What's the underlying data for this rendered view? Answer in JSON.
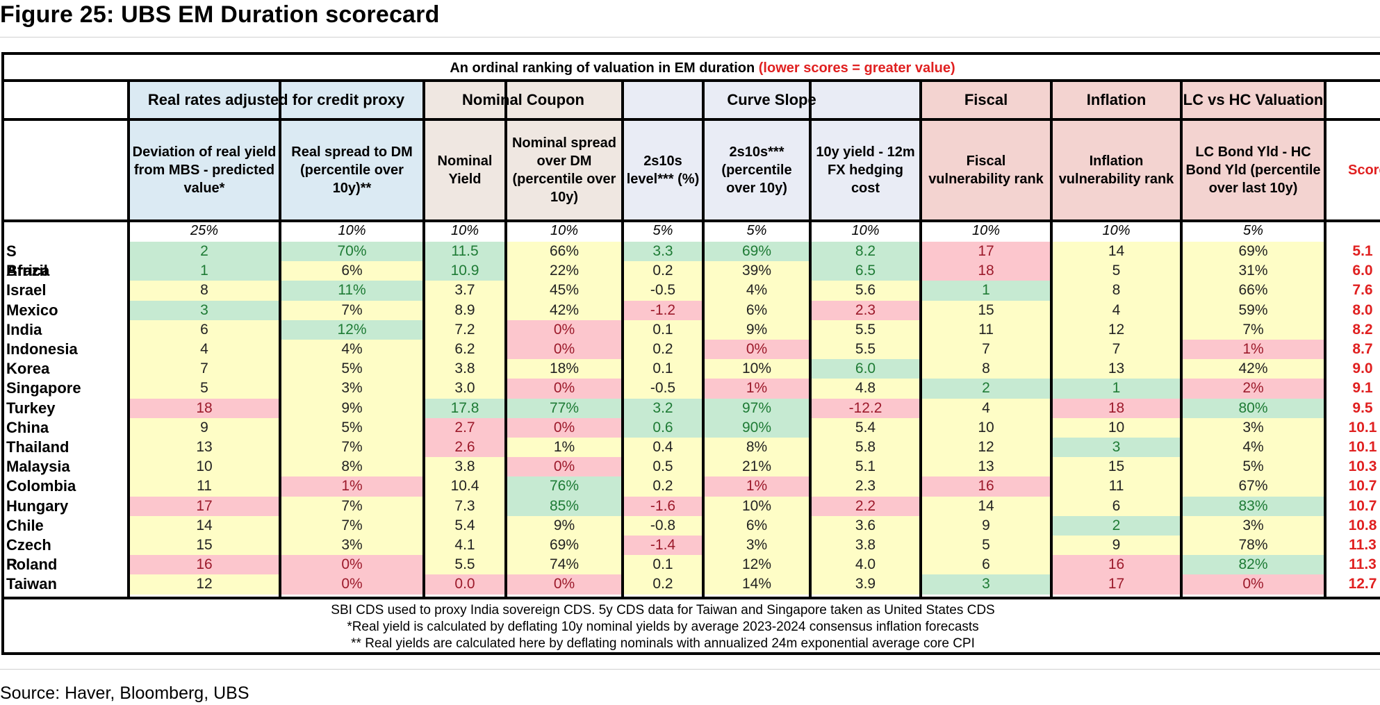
{
  "figure_title": "Figure 25: UBS EM Duration scorecard",
  "source": "Source: Haver, Bloomberg, UBS",
  "banner": {
    "text": "An ordinal ranking of valuation in EM duration ",
    "highlight": "(lower scores = greater value)"
  },
  "colors": {
    "good": "#c6ead2",
    "bad": "#fcc6cd",
    "neutral": "#fefdc6",
    "group_blue": "#dbeaf3",
    "group_beige": "#efe7e1",
    "group_lavender": "#e9ecf5",
    "group_pink": "#f3d3d0",
    "score_red": "#e02020"
  },
  "groups": [
    {
      "label": "Real rates adjusted for credit proxy"
    },
    {
      "label": "Nominal Coupon"
    },
    {
      "label": "Curve Slope"
    },
    {
      "label": "Fiscal"
    },
    {
      "label": "Inflation"
    },
    {
      "label": "LC vs HC Valuation"
    }
  ],
  "columns": [
    {
      "label": "Deviation of real yield from MBS - predicted value*",
      "weight": "25%"
    },
    {
      "label": "Real spread to DM (percentile over 10y)**",
      "weight": "10%"
    },
    {
      "label": "Nominal Yield",
      "weight": "10%"
    },
    {
      "label": "Nominal spread over DM (percentile over 10y)",
      "weight": "10%"
    },
    {
      "label": "2s10s level*** (%)",
      "weight": "5%"
    },
    {
      "label": "2s10s*** (percentile over 10y)",
      "weight": "5%"
    },
    {
      "label": "10y yield - 12m FX hedging cost",
      "weight": "10%"
    },
    {
      "label": "Fiscal vulnerability rank",
      "weight": "10%"
    },
    {
      "label": "Inflation vulnerability rank",
      "weight": "10%"
    },
    {
      "label": "LC Bond Yld - HC Bond Yld (percentile over last 10y)",
      "weight": "5%"
    }
  ],
  "score_label": "Score",
  "rows": [
    {
      "country": "S Africa",
      "score": "5.1",
      "values": [
        "2",
        "70%",
        "11.5",
        "66%",
        "3.3",
        "69%",
        "8.2",
        "17",
        "14",
        "69%"
      ],
      "shade": [
        "g",
        "g",
        "g",
        "y",
        "g",
        "g",
        "g",
        "r",
        "y",
        "y"
      ]
    },
    {
      "country": "Brazil",
      "score": "6.0",
      "values": [
        "1",
        "6%",
        "10.9",
        "22%",
        "0.2",
        "39%",
        "6.5",
        "18",
        "5",
        "31%"
      ],
      "shade": [
        "g",
        "y",
        "g",
        "y",
        "y",
        "y",
        "g",
        "r",
        "y",
        "y"
      ]
    },
    {
      "country": "Israel",
      "score": "7.6",
      "values": [
        "8",
        "11%",
        "3.7",
        "45%",
        "-0.5",
        "4%",
        "5.6",
        "1",
        "8",
        "66%"
      ],
      "shade": [
        "y",
        "g",
        "y",
        "y",
        "y",
        "y",
        "y",
        "g",
        "y",
        "y"
      ]
    },
    {
      "country": "Mexico",
      "score": "8.0",
      "values": [
        "3",
        "7%",
        "8.9",
        "42%",
        "-1.2",
        "6%",
        "2.3",
        "15",
        "4",
        "59%"
      ],
      "shade": [
        "g",
        "y",
        "y",
        "y",
        "r",
        "y",
        "r",
        "y",
        "y",
        "y"
      ]
    },
    {
      "country": "India",
      "score": "8.2",
      "values": [
        "6",
        "12%",
        "7.2",
        "0%",
        "0.1",
        "9%",
        "5.5",
        "11",
        "12",
        "7%"
      ],
      "shade": [
        "y",
        "g",
        "y",
        "r",
        "y",
        "y",
        "y",
        "y",
        "y",
        "y"
      ]
    },
    {
      "country": "Indonesia",
      "score": "8.7",
      "values": [
        "4",
        "4%",
        "6.2",
        "0%",
        "0.2",
        "0%",
        "5.5",
        "7",
        "7",
        "1%"
      ],
      "shade": [
        "y",
        "y",
        "y",
        "r",
        "y",
        "r",
        "y",
        "y",
        "y",
        "r"
      ]
    },
    {
      "country": "Korea",
      "score": "9.0",
      "values": [
        "7",
        "5%",
        "3.8",
        "18%",
        "0.1",
        "10%",
        "6.0",
        "8",
        "13",
        "42%"
      ],
      "shade": [
        "y",
        "y",
        "y",
        "y",
        "y",
        "y",
        "g",
        "y",
        "y",
        "y"
      ]
    },
    {
      "country": "Singapore",
      "score": "9.1",
      "values": [
        "5",
        "3%",
        "3.0",
        "0%",
        "-0.5",
        "1%",
        "4.8",
        "2",
        "1",
        "2%"
      ],
      "shade": [
        "y",
        "y",
        "y",
        "r",
        "y",
        "r",
        "y",
        "g",
        "g",
        "r"
      ]
    },
    {
      "country": "Turkey",
      "score": "9.5",
      "values": [
        "18",
        "9%",
        "17.8",
        "77%",
        "3.2",
        "97%",
        "-12.2",
        "4",
        "18",
        "80%"
      ],
      "shade": [
        "r",
        "y",
        "g",
        "g",
        "g",
        "g",
        "r",
        "y",
        "r",
        "g"
      ]
    },
    {
      "country": "China",
      "score": "10.1",
      "values": [
        "9",
        "5%",
        "2.7",
        "0%",
        "0.6",
        "90%",
        "5.4",
        "10",
        "10",
        "3%"
      ],
      "shade": [
        "y",
        "y",
        "r",
        "r",
        "g",
        "g",
        "y",
        "y",
        "y",
        "y"
      ]
    },
    {
      "country": "Thailand",
      "score": "10.1",
      "values": [
        "13",
        "7%",
        "2.6",
        "1%",
        "0.4",
        "8%",
        "5.8",
        "12",
        "3",
        "4%"
      ],
      "shade": [
        "y",
        "y",
        "r",
        "y",
        "y",
        "y",
        "y",
        "y",
        "g",
        "y"
      ]
    },
    {
      "country": "Malaysia",
      "score": "10.3",
      "values": [
        "10",
        "8%",
        "3.8",
        "0%",
        "0.5",
        "21%",
        "5.1",
        "13",
        "15",
        "5%"
      ],
      "shade": [
        "y",
        "y",
        "y",
        "r",
        "y",
        "y",
        "y",
        "y",
        "y",
        "y"
      ]
    },
    {
      "country": "Colombia",
      "score": "10.7",
      "values": [
        "11",
        "1%",
        "10.4",
        "76%",
        "0.2",
        "1%",
        "2.3",
        "16",
        "11",
        "67%"
      ],
      "shade": [
        "y",
        "r",
        "y",
        "g",
        "y",
        "r",
        "y",
        "r",
        "y",
        "y"
      ]
    },
    {
      "country": "Hungary",
      "score": "10.7",
      "values": [
        "17",
        "7%",
        "7.3",
        "85%",
        "-1.6",
        "10%",
        "2.2",
        "14",
        "6",
        "83%"
      ],
      "shade": [
        "r",
        "y",
        "y",
        "g",
        "r",
        "y",
        "r",
        "y",
        "y",
        "g"
      ]
    },
    {
      "country": "Chile",
      "score": "10.8",
      "values": [
        "14",
        "7%",
        "5.4",
        "9%",
        "-0.8",
        "6%",
        "3.6",
        "9",
        "2",
        "3%"
      ],
      "shade": [
        "y",
        "y",
        "y",
        "y",
        "y",
        "y",
        "y",
        "y",
        "g",
        "y"
      ]
    },
    {
      "country": "Czech R",
      "score": "11.3",
      "values": [
        "15",
        "3%",
        "4.1",
        "69%",
        "-1.4",
        "3%",
        "3.8",
        "5",
        "9",
        "78%"
      ],
      "shade": [
        "y",
        "y",
        "y",
        "y",
        "r",
        "y",
        "y",
        "y",
        "y",
        "y"
      ]
    },
    {
      "country": "Poland",
      "score": "11.3",
      "values": [
        "16",
        "0%",
        "5.5",
        "74%",
        "0.1",
        "12%",
        "4.0",
        "6",
        "16",
        "82%"
      ],
      "shade": [
        "r",
        "r",
        "y",
        "y",
        "y",
        "y",
        "y",
        "y",
        "r",
        "g"
      ]
    },
    {
      "country": "Taiwan",
      "score": "12.7",
      "values": [
        "12",
        "0%",
        "0.0",
        "0%",
        "0.2",
        "14%",
        "3.9",
        "3",
        "17",
        "0%"
      ],
      "shade": [
        "y",
        "r",
        "r",
        "r",
        "y",
        "y",
        "y",
        "g",
        "r",
        "r"
      ]
    }
  ],
  "notes": [
    "SBI CDS used to proxy India sovereign CDS. 5y CDS data for Taiwan and Singapore taken as United States CDS",
    "*Real yield is calculated by deflating 10y nominal yields by average 2023-2024 consensus inflation forecasts",
    "** Real yields are calculated here by deflating nominals with annualized 24m exponential average core CPI"
  ]
}
